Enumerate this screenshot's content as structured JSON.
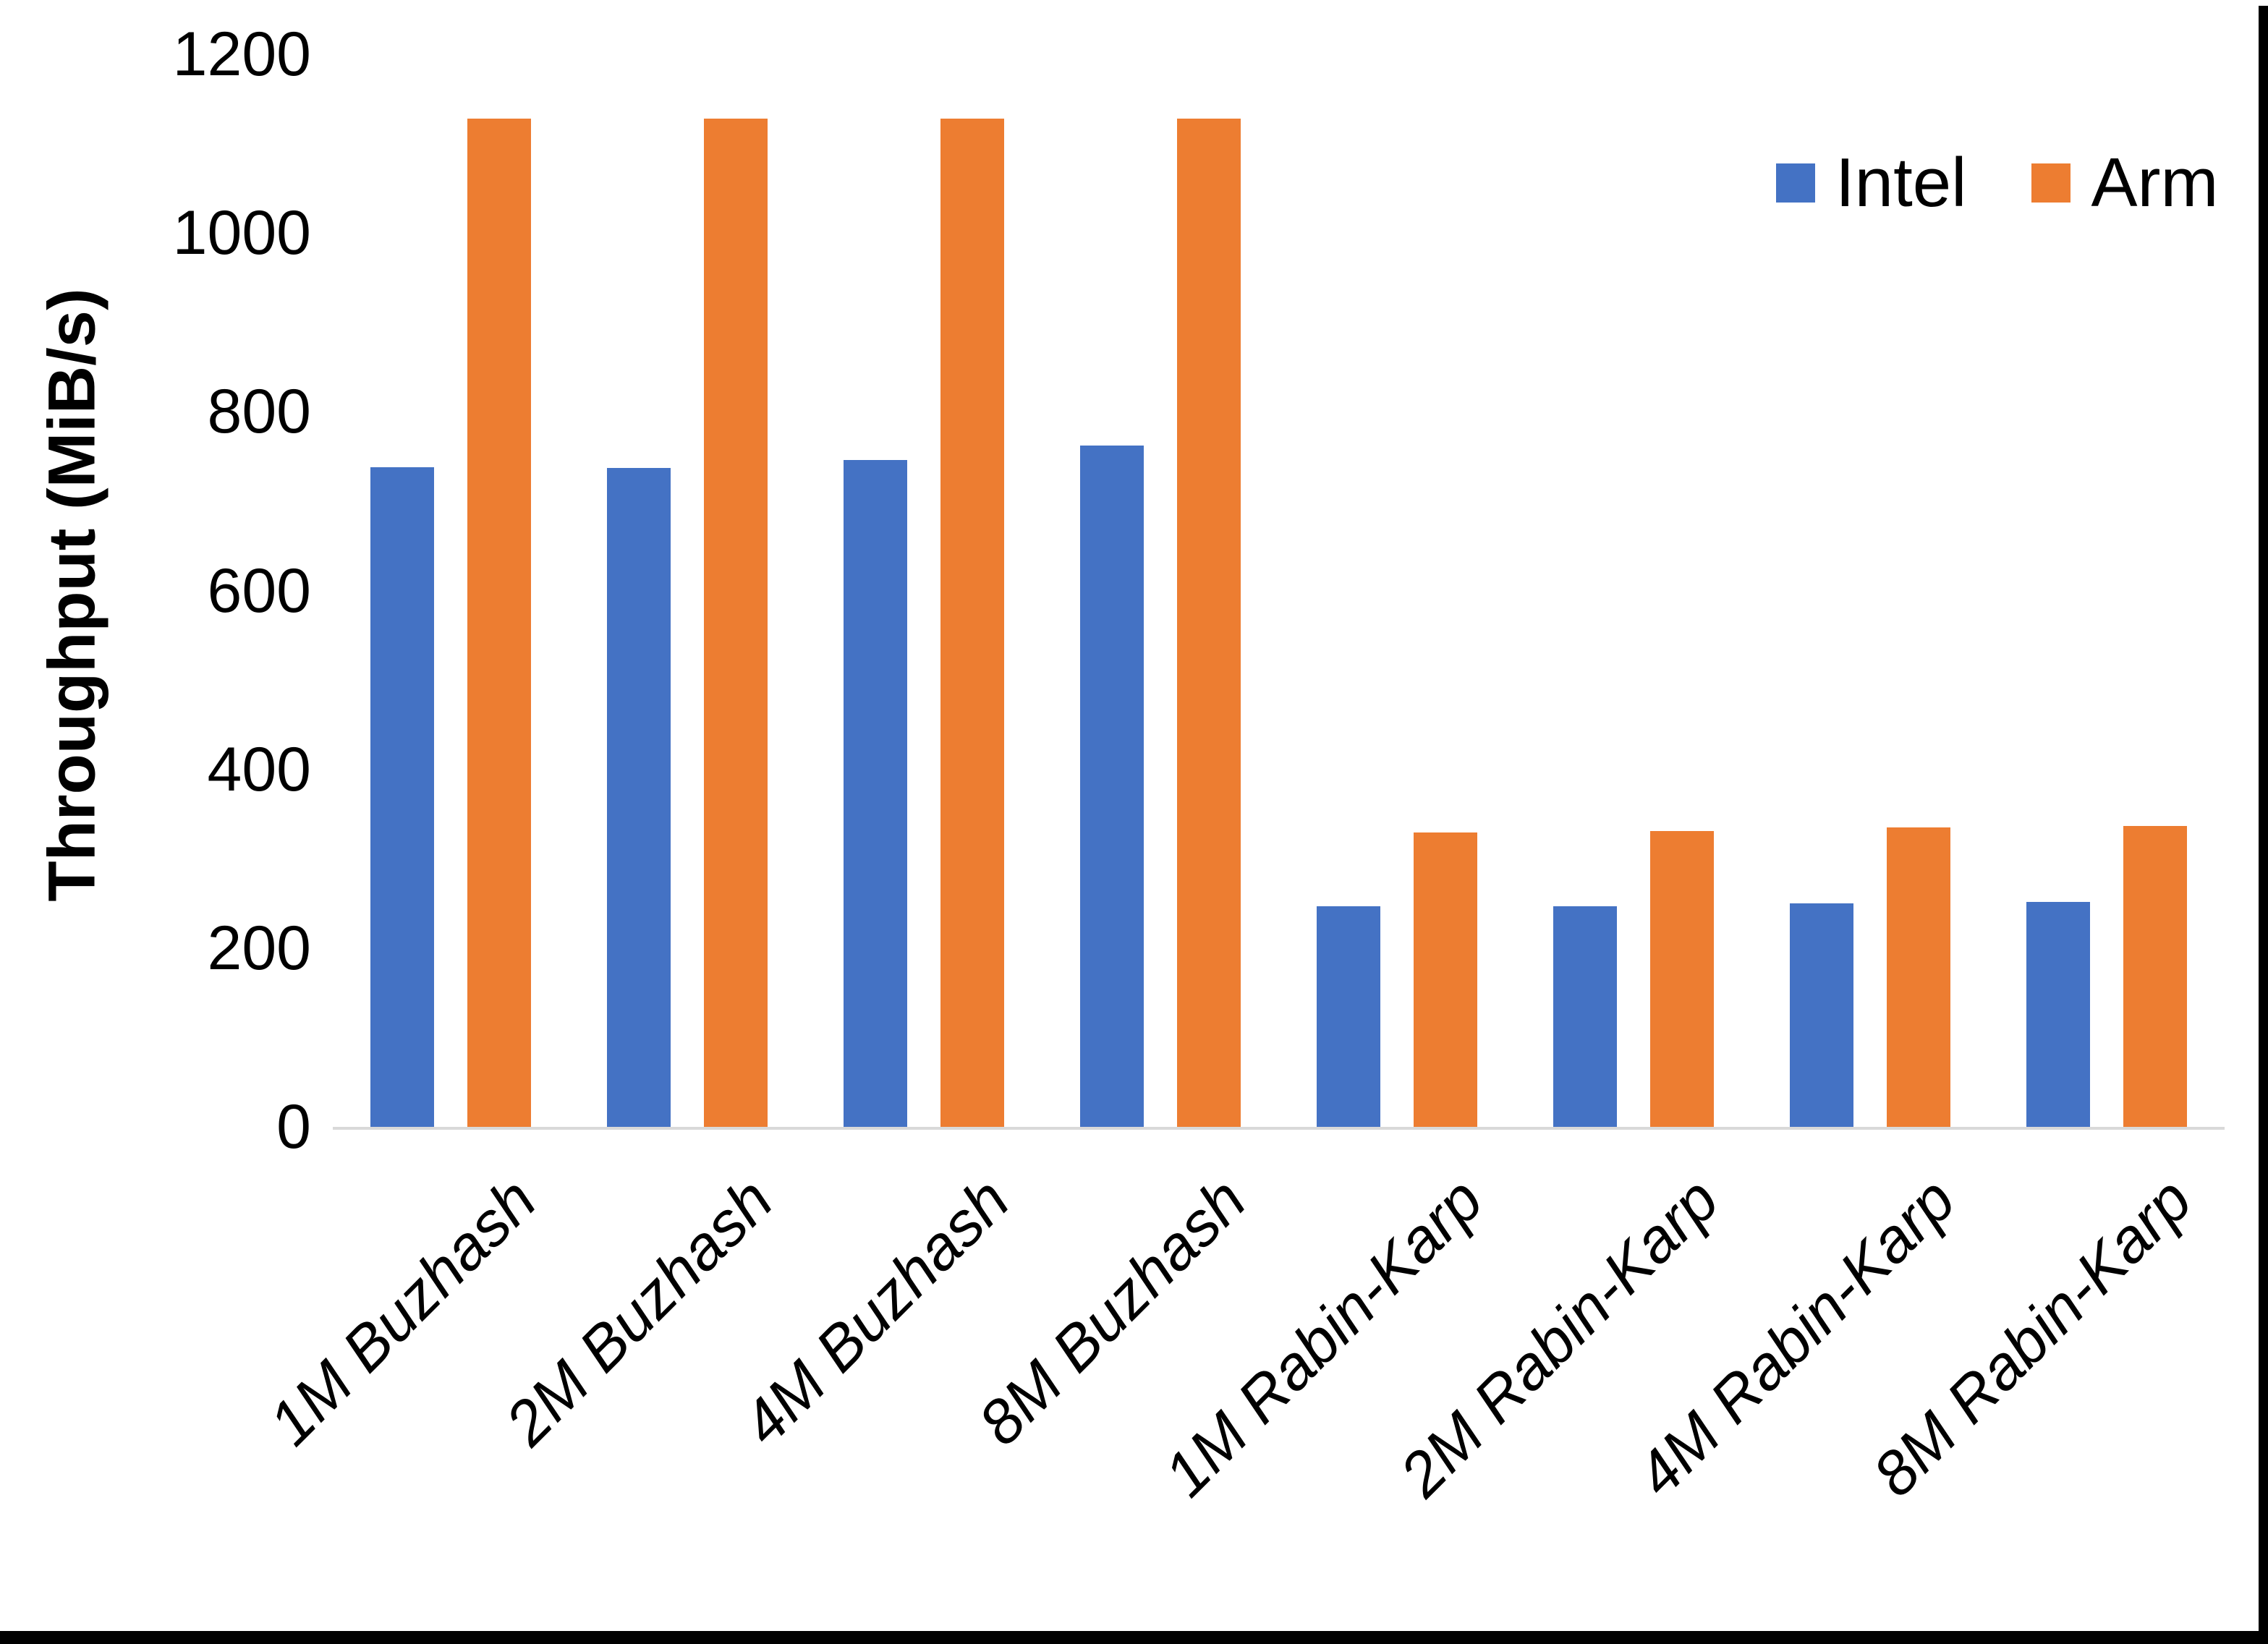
{
  "chart_data": {
    "type": "bar",
    "title": "",
    "xlabel": "",
    "ylabel": "Throughput (MiB/s)",
    "ylim": [
      0,
      1200
    ],
    "ytick_step": 200,
    "yticks": [
      0,
      200,
      400,
      600,
      800,
      1000,
      1200
    ],
    "grid": false,
    "legend_position": "top-right",
    "categories": [
      "1M Buzhash",
      "2M Buzhash",
      "4M Buzhash",
      "8M Buzhash",
      "1M Rabin-Karp",
      "2M Rabin-Karp",
      "4M Rabin-Karp",
      "8M Rabin-Karp"
    ],
    "series": [
      {
        "name": "Intel",
        "color": "#4472C4",
        "values": [
          738,
          737,
          746,
          762,
          247,
          247,
          250,
          252
        ]
      },
      {
        "name": "Arm",
        "color": "#ED7D31",
        "values": [
          1128,
          1128,
          1128,
          1128,
          329,
          331,
          335,
          337
        ]
      }
    ],
    "axis_line_color": "#d9d9d9",
    "text_color": "#000000"
  }
}
